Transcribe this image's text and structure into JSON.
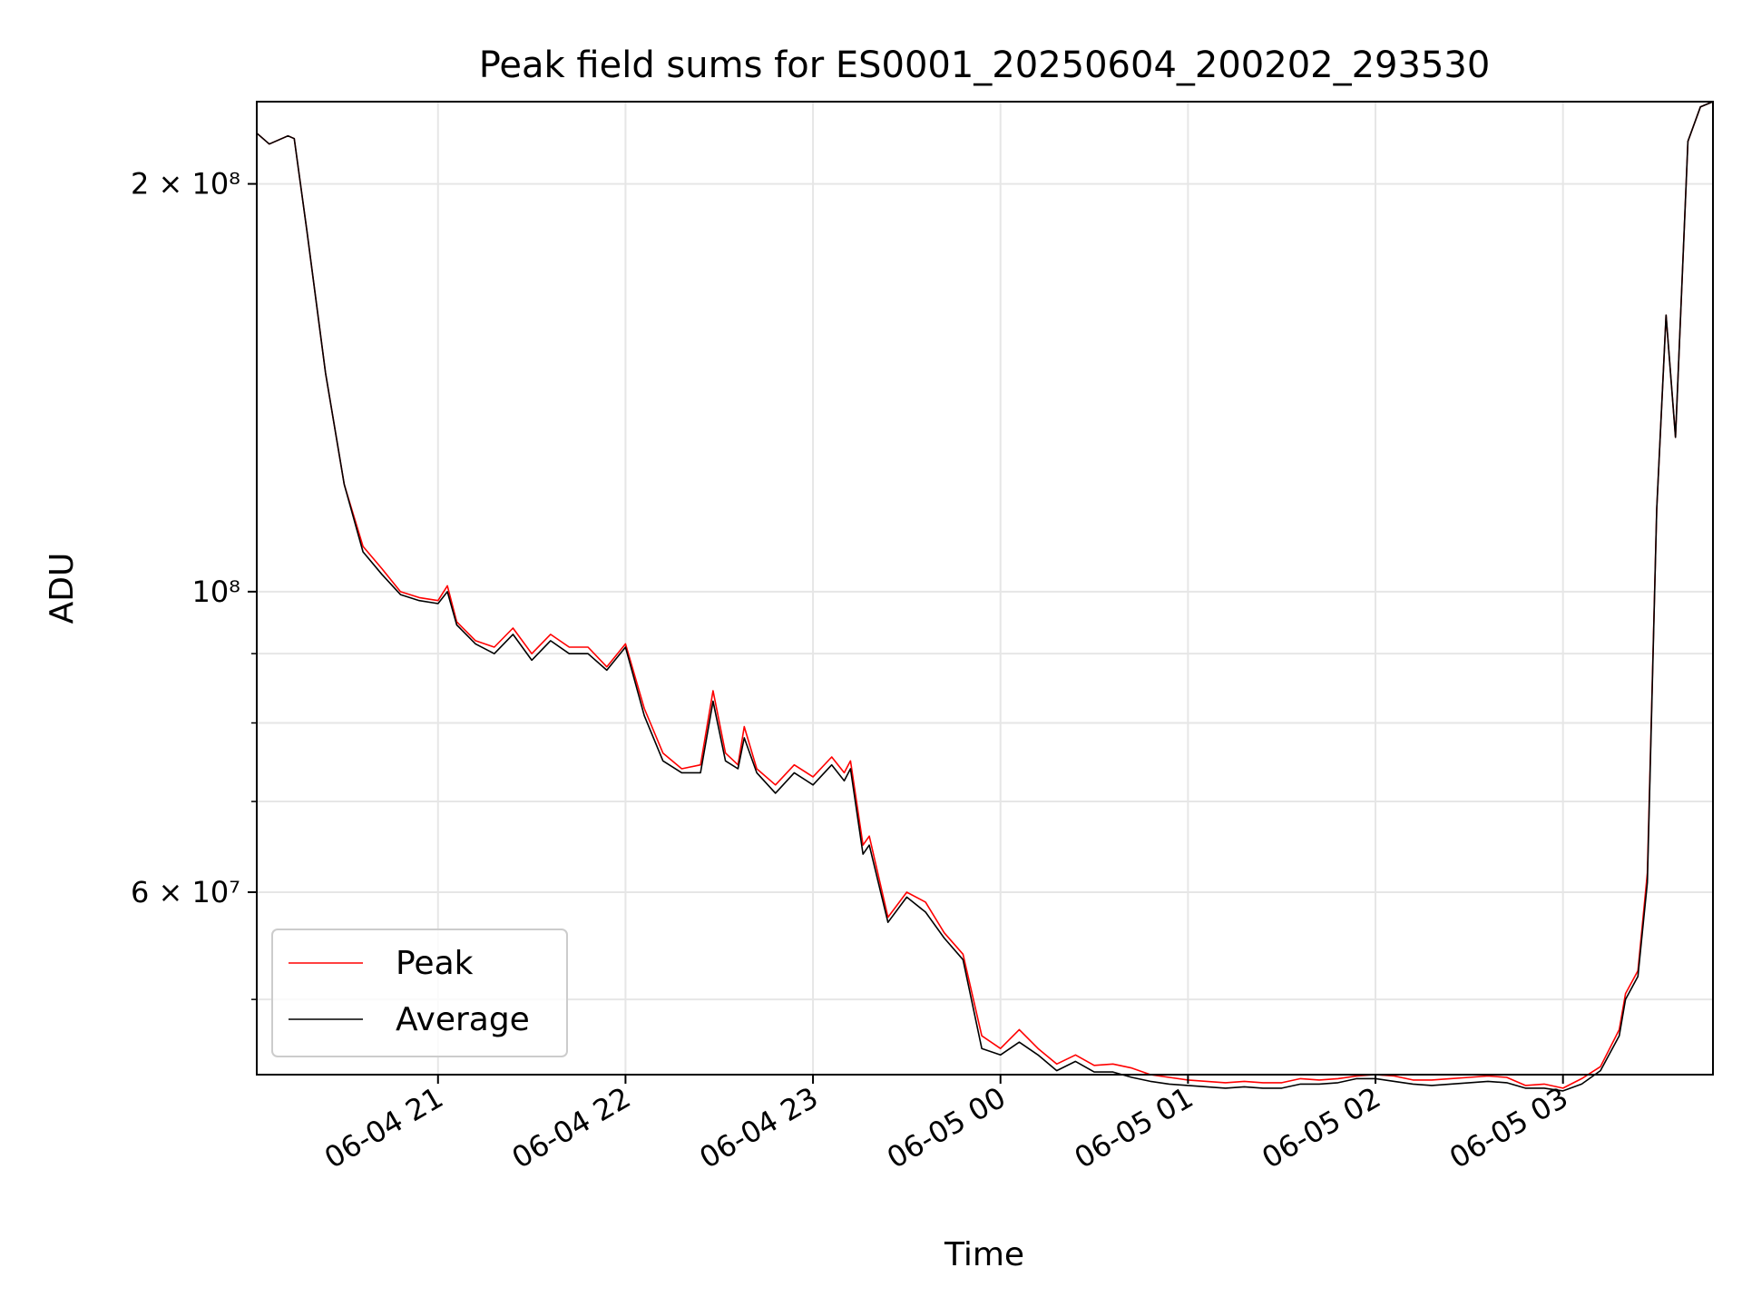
{
  "chart_data": {
    "type": "line",
    "title": "Peak field sums for ES0001_20250604_200202_293530",
    "xlabel": "Time",
    "ylabel": "ADU",
    "x_unit": "datetime (hours)",
    "xlim": [
      "2025-06-04 20:02",
      "2025-06-05 03:48"
    ],
    "yscale": "log",
    "ylim": [
      44000000,
      230000000
    ],
    "grid": true,
    "legend_position": "lower-left",
    "x_ticks": [
      {
        "value": "2025-06-04 21:00",
        "label": "06-04 21"
      },
      {
        "value": "2025-06-04 22:00",
        "label": "06-04 22"
      },
      {
        "value": "2025-06-04 23:00",
        "label": "06-04 23"
      },
      {
        "value": "2025-06-05 00:00",
        "label": "06-05 00"
      },
      {
        "value": "2025-06-05 01:00",
        "label": "06-05 01"
      },
      {
        "value": "2025-06-05 02:00",
        "label": "06-05 02"
      },
      {
        "value": "2025-06-05 03:00",
        "label": "06-05 03"
      }
    ],
    "y_ticks": [
      {
        "value": 60000000,
        "label": "6 × 10⁷"
      },
      {
        "value": 100000000,
        "label": "10⁸"
      },
      {
        "value": 200000000,
        "label": "2 × 10⁸"
      }
    ],
    "y_minor_ticks": [
      50000000,
      70000000,
      80000000,
      90000000
    ],
    "series": [
      {
        "name": "Peak",
        "color": "#ff0000",
        "x": [
          "2025-06-04 20:02",
          "2025-06-04 20:06",
          "2025-06-04 20:12",
          "2025-06-04 20:14",
          "2025-06-04 20:18",
          "2025-06-04 20:24",
          "2025-06-04 20:30",
          "2025-06-04 20:36",
          "2025-06-04 20:42",
          "2025-06-04 20:48",
          "2025-06-04 20:54",
          "2025-06-04 21:00",
          "2025-06-04 21:03",
          "2025-06-04 21:06",
          "2025-06-04 21:12",
          "2025-06-04 21:18",
          "2025-06-04 21:24",
          "2025-06-04 21:30",
          "2025-06-04 21:36",
          "2025-06-04 21:42",
          "2025-06-04 21:48",
          "2025-06-04 21:54",
          "2025-06-04 22:00",
          "2025-06-04 22:06",
          "2025-06-04 22:12",
          "2025-06-04 22:18",
          "2025-06-04 22:24",
          "2025-06-04 22:28",
          "2025-06-04 22:32",
          "2025-06-04 22:36",
          "2025-06-04 22:38",
          "2025-06-04 22:42",
          "2025-06-04 22:48",
          "2025-06-04 22:54",
          "2025-06-04 23:00",
          "2025-06-04 23:06",
          "2025-06-04 23:10",
          "2025-06-04 23:12",
          "2025-06-04 23:16",
          "2025-06-04 23:18",
          "2025-06-04 23:24",
          "2025-06-04 23:30",
          "2025-06-04 23:36",
          "2025-06-04 23:42",
          "2025-06-04 23:48",
          "2025-06-04 23:54",
          "2025-06-05 00:00",
          "2025-06-05 00:06",
          "2025-06-05 00:12",
          "2025-06-05 00:18",
          "2025-06-05 00:24",
          "2025-06-05 00:30",
          "2025-06-05 00:36",
          "2025-06-05 00:42",
          "2025-06-05 00:48",
          "2025-06-05 00:54",
          "2025-06-05 01:00",
          "2025-06-05 01:06",
          "2025-06-05 01:12",
          "2025-06-05 01:18",
          "2025-06-05 01:24",
          "2025-06-05 01:30",
          "2025-06-05 01:36",
          "2025-06-05 01:42",
          "2025-06-05 01:48",
          "2025-06-05 01:54",
          "2025-06-05 02:00",
          "2025-06-05 02:06",
          "2025-06-05 02:12",
          "2025-06-05 02:18",
          "2025-06-05 02:24",
          "2025-06-05 02:30",
          "2025-06-05 02:36",
          "2025-06-05 02:42",
          "2025-06-05 02:48",
          "2025-06-05 02:54",
          "2025-06-05 03:00",
          "2025-06-05 03:06",
          "2025-06-05 03:12",
          "2025-06-05 03:18",
          "2025-06-05 03:20",
          "2025-06-05 03:24",
          "2025-06-05 03:27",
          "2025-06-05 03:30",
          "2025-06-05 03:33",
          "2025-06-05 03:36",
          "2025-06-05 03:40",
          "2025-06-05 03:44",
          "2025-06-05 03:48"
        ],
        "values": [
          218000000,
          214000000,
          217000000,
          216000000,
          185000000,
          145000000,
          120000000,
          108000000,
          104000000,
          100000000,
          99000000,
          98500000,
          101000000,
          95000000,
          92000000,
          91000000,
          94000000,
          90000000,
          93000000,
          91000000,
          91000000,
          88000000,
          91500000,
          82000000,
          76000000,
          74000000,
          74500000,
          84500000,
          76000000,
          74500000,
          79500000,
          74000000,
          72000000,
          74500000,
          73000000,
          75500000,
          73500000,
          75000000,
          65000000,
          66000000,
          57500000,
          60000000,
          59000000,
          56000000,
          54000000,
          47000000,
          46000000,
          47500000,
          46000000,
          44800000,
          45500000,
          44700000,
          44800000,
          44500000,
          44000000,
          43800000,
          43600000,
          43500000,
          43400000,
          43500000,
          43400000,
          43400000,
          43700000,
          43600000,
          43700000,
          43900000,
          44000000,
          43900000,
          43600000,
          43600000,
          43700000,
          43800000,
          43900000,
          43800000,
          43200000,
          43300000,
          43000000,
          43700000,
          44600000,
          47500000,
          50500000,
          52500000,
          62000000,
          115000000,
          160000000,
          130000000,
          215000000,
          228000000,
          230000000
        ]
      },
      {
        "name": "Average",
        "color": "#000000",
        "x": [
          "2025-06-04 20:02",
          "2025-06-04 20:06",
          "2025-06-04 20:12",
          "2025-06-04 20:14",
          "2025-06-04 20:18",
          "2025-06-04 20:24",
          "2025-06-04 20:30",
          "2025-06-04 20:36",
          "2025-06-04 20:42",
          "2025-06-04 20:48",
          "2025-06-04 20:54",
          "2025-06-04 21:00",
          "2025-06-04 21:03",
          "2025-06-04 21:06",
          "2025-06-04 21:12",
          "2025-06-04 21:18",
          "2025-06-04 21:24",
          "2025-06-04 21:30",
          "2025-06-04 21:36",
          "2025-06-04 21:42",
          "2025-06-04 21:48",
          "2025-06-04 21:54",
          "2025-06-04 22:00",
          "2025-06-04 22:06",
          "2025-06-04 22:12",
          "2025-06-04 22:18",
          "2025-06-04 22:24",
          "2025-06-04 22:28",
          "2025-06-04 22:32",
          "2025-06-04 22:36",
          "2025-06-04 22:38",
          "2025-06-04 22:42",
          "2025-06-04 22:48",
          "2025-06-04 22:54",
          "2025-06-04 23:00",
          "2025-06-04 23:06",
          "2025-06-04 23:10",
          "2025-06-04 23:12",
          "2025-06-04 23:16",
          "2025-06-04 23:18",
          "2025-06-04 23:24",
          "2025-06-04 23:30",
          "2025-06-04 23:36",
          "2025-06-04 23:42",
          "2025-06-04 23:48",
          "2025-06-04 23:54",
          "2025-06-05 00:00",
          "2025-06-05 00:06",
          "2025-06-05 00:12",
          "2025-06-05 00:18",
          "2025-06-05 00:24",
          "2025-06-05 00:30",
          "2025-06-05 00:36",
          "2025-06-05 00:42",
          "2025-06-05 00:48",
          "2025-06-05 00:54",
          "2025-06-05 01:00",
          "2025-06-05 01:06",
          "2025-06-05 01:12",
          "2025-06-05 01:18",
          "2025-06-05 01:24",
          "2025-06-05 01:30",
          "2025-06-05 01:36",
          "2025-06-05 01:42",
          "2025-06-05 01:48",
          "2025-06-05 01:54",
          "2025-06-05 02:00",
          "2025-06-05 02:06",
          "2025-06-05 02:12",
          "2025-06-05 02:18",
          "2025-06-05 02:24",
          "2025-06-05 02:30",
          "2025-06-05 02:36",
          "2025-06-05 02:42",
          "2025-06-05 02:48",
          "2025-06-05 02:54",
          "2025-06-05 03:00",
          "2025-06-05 03:06",
          "2025-06-05 03:12",
          "2025-06-05 03:18",
          "2025-06-05 03:20",
          "2025-06-05 03:24",
          "2025-06-05 03:27",
          "2025-06-05 03:30",
          "2025-06-05 03:33",
          "2025-06-05 03:36",
          "2025-06-05 03:40",
          "2025-06-05 03:44",
          "2025-06-05 03:48"
        ],
        "values": [
          218000000,
          214000000,
          217000000,
          216000000,
          185000000,
          145000000,
          120000000,
          107000000,
          103000000,
          99500000,
          98500000,
          98000000,
          100000000,
          94500000,
          91500000,
          90000000,
          93000000,
          89000000,
          92000000,
          90000000,
          90000000,
          87500000,
          91000000,
          81000000,
          75000000,
          73500000,
          73500000,
          83000000,
          75000000,
          74000000,
          78000000,
          73500000,
          71000000,
          73500000,
          72000000,
          74500000,
          72500000,
          74000000,
          64000000,
          65000000,
          57000000,
          59500000,
          58000000,
          55500000,
          53500000,
          46000000,
          45500000,
          46500000,
          45500000,
          44300000,
          45000000,
          44200000,
          44200000,
          43800000,
          43500000,
          43300000,
          43200000,
          43100000,
          43000000,
          43100000,
          43000000,
          43000000,
          43300000,
          43300000,
          43400000,
          43700000,
          43700000,
          43500000,
          43300000,
          43200000,
          43300000,
          43400000,
          43500000,
          43400000,
          43000000,
          43000000,
          42800000,
          43300000,
          44300000,
          47000000,
          50000000,
          52000000,
          61000000,
          115000000,
          160000000,
          130000000,
          215000000,
          228000000,
          230000000
        ]
      }
    ]
  }
}
